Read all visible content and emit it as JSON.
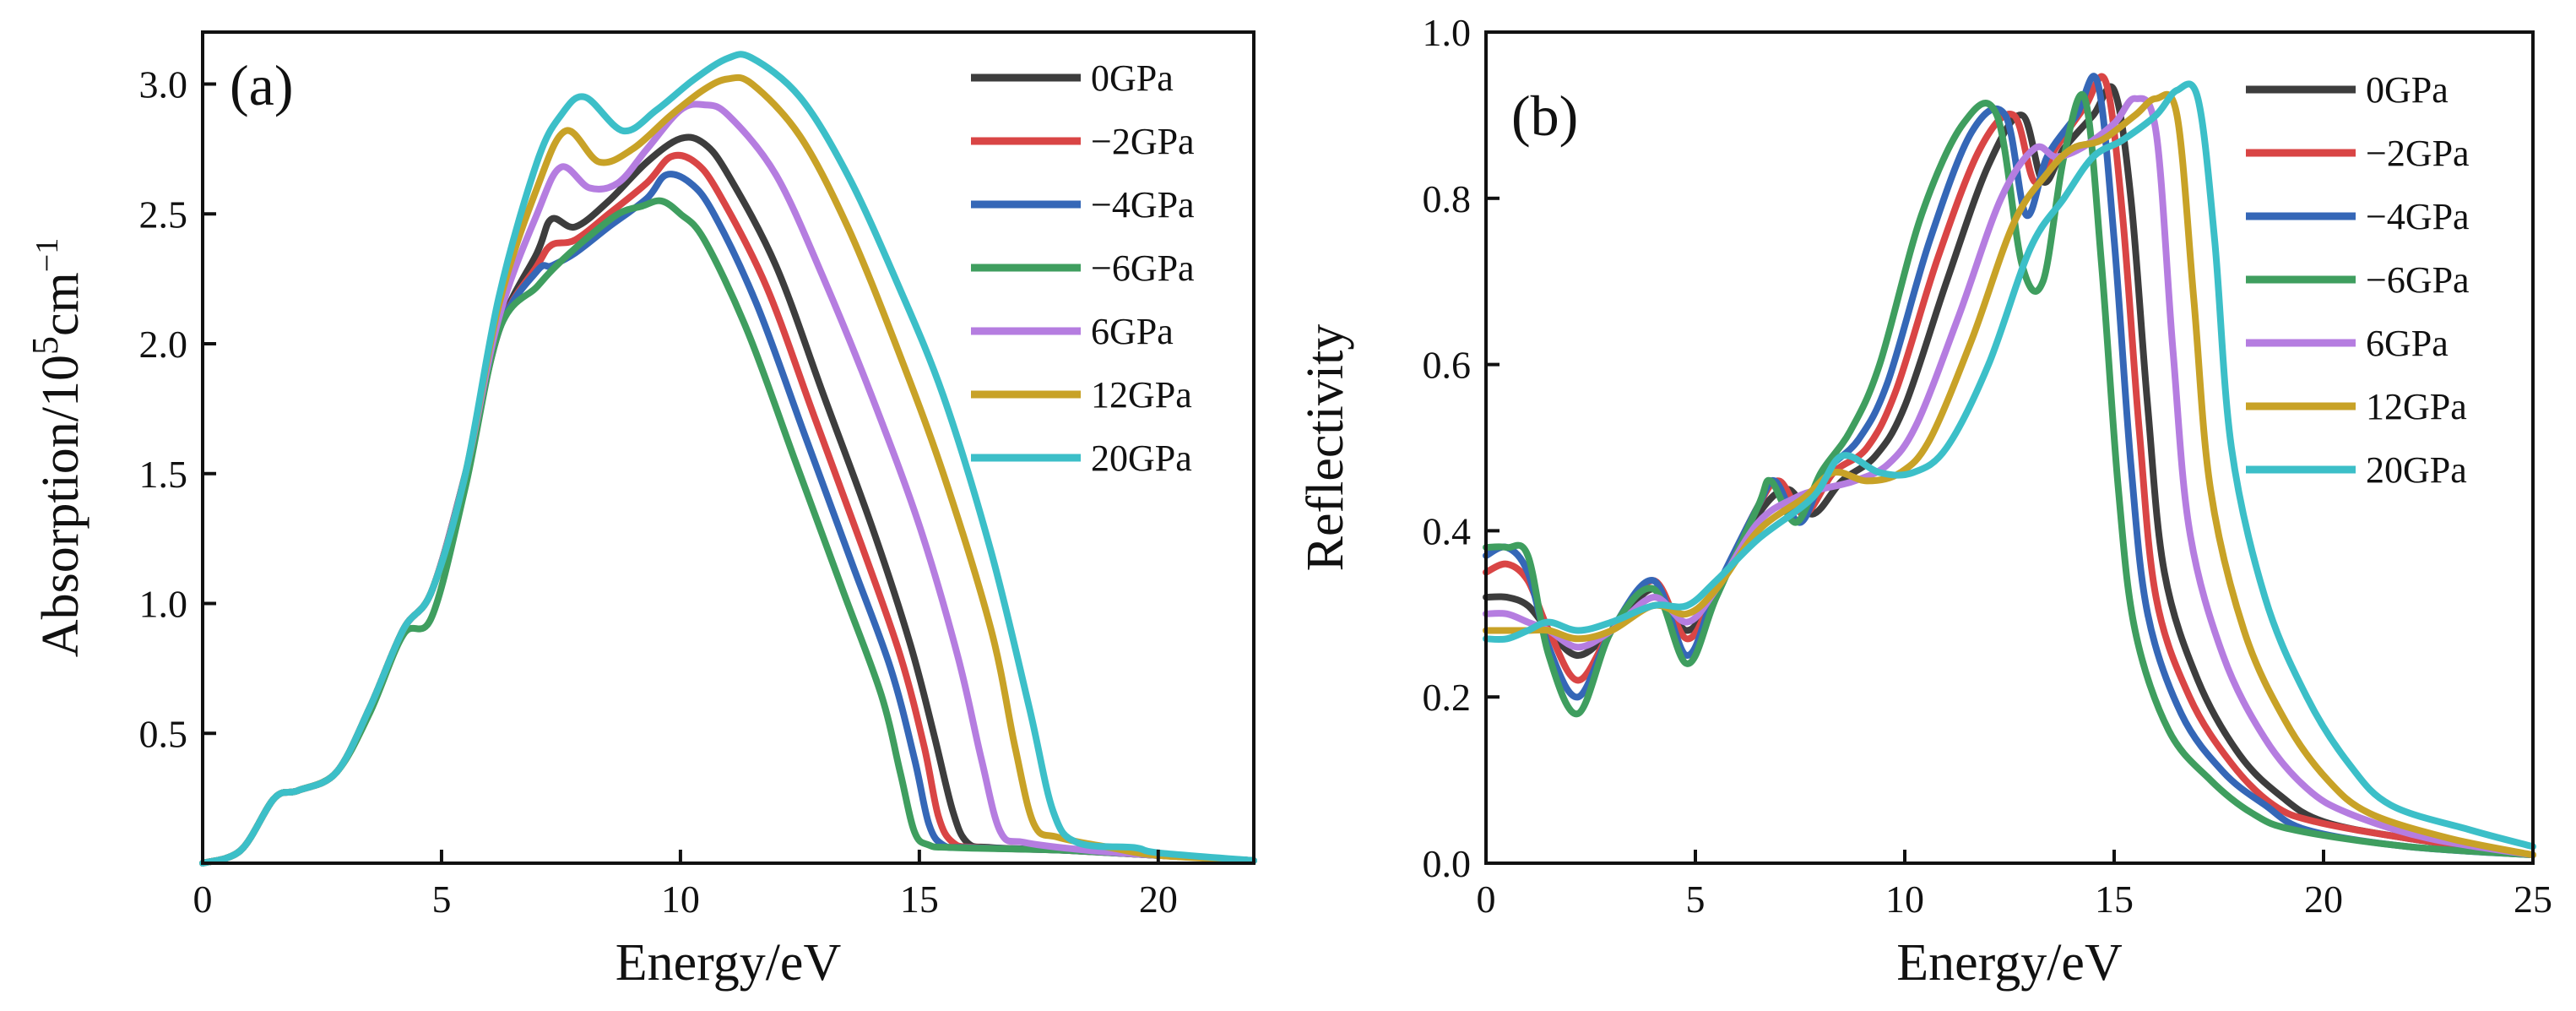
{
  "chart_data": [
    {
      "type": "line",
      "panel_label": "(a)",
      "xlabel": "Energy/eV",
      "ylabel_base": "Absorption/10",
      "ylabel_sup": "5",
      "ylabel_unit": "cm",
      "ylabel_unit_sup": "−1",
      "xlim": [
        0,
        22
      ],
      "ylim": [
        0,
        3.2
      ],
      "x_ticks": [
        0,
        5,
        10,
        15,
        20
      ],
      "y_ticks": [
        0.5,
        1.0,
        1.5,
        2.0,
        2.5,
        3.0
      ],
      "x_tick_labels": [
        "0",
        "5",
        "10",
        "15",
        "20"
      ],
      "y_tick_labels": [
        "0.5",
        "1.0",
        "1.5",
        "2.0",
        "2.5",
        "3.0"
      ],
      "grid": false,
      "legend_position": "top-right",
      "series": [
        {
          "name": "0GPa",
          "color": "#3d3d3d",
          "x": [
            0,
            0.8,
            1.5,
            2.0,
            2.8,
            3.5,
            4.2,
            4.8,
            5.5,
            6.2,
            7.0,
            7.3,
            7.8,
            8.5,
            9.3,
            10.0,
            10.5,
            11.0,
            12.0,
            13.0,
            14.0,
            14.8,
            15.3,
            15.7,
            16.0,
            16.5,
            18,
            20,
            22
          ],
          "y": [
            0,
            0.05,
            0.25,
            0.28,
            0.35,
            0.6,
            0.9,
            1.05,
            1.5,
            2.05,
            2.35,
            2.48,
            2.45,
            2.55,
            2.7,
            2.79,
            2.77,
            2.65,
            2.3,
            1.8,
            1.3,
            0.85,
            0.5,
            0.2,
            0.08,
            0.06,
            0.05,
            0.03,
            0.01
          ]
        },
        {
          "name": "−2GPa",
          "color": "#d94545",
          "x": [
            0,
            0.8,
            1.5,
            2.0,
            2.8,
            3.5,
            4.2,
            4.8,
            5.5,
            6.2,
            7.0,
            7.3,
            7.8,
            8.5,
            9.3,
            9.8,
            10.3,
            10.8,
            11.8,
            12.8,
            13.8,
            14.6,
            15.1,
            15.4,
            15.7,
            16.2,
            18,
            20,
            22
          ],
          "y": [
            0,
            0.05,
            0.25,
            0.28,
            0.35,
            0.6,
            0.9,
            1.05,
            1.5,
            2.05,
            2.3,
            2.38,
            2.4,
            2.5,
            2.62,
            2.72,
            2.7,
            2.58,
            2.22,
            1.72,
            1.22,
            0.8,
            0.45,
            0.18,
            0.08,
            0.06,
            0.05,
            0.03,
            0.01
          ]
        },
        {
          "name": "−4GPa",
          "color": "#3567b7",
          "x": [
            0,
            0.8,
            1.5,
            2.0,
            2.8,
            3.5,
            4.2,
            4.8,
            5.5,
            6.2,
            7.0,
            7.3,
            7.8,
            8.5,
            9.3,
            9.7,
            10.2,
            10.7,
            11.6,
            12.6,
            13.6,
            14.4,
            14.9,
            15.2,
            15.5,
            16.0,
            18,
            20,
            22
          ],
          "y": [
            0,
            0.05,
            0.25,
            0.28,
            0.35,
            0.6,
            0.9,
            1.05,
            1.5,
            2.05,
            2.28,
            2.3,
            2.35,
            2.45,
            2.56,
            2.65,
            2.62,
            2.5,
            2.15,
            1.65,
            1.15,
            0.75,
            0.4,
            0.15,
            0.07,
            0.06,
            0.05,
            0.03,
            0.01
          ]
        },
        {
          "name": "−6GPa",
          "color": "#3f9e5f",
          "x": [
            0,
            0.8,
            1.5,
            2.0,
            2.8,
            3.5,
            4.2,
            4.8,
            5.5,
            6.2,
            7.0,
            7.4,
            8.0,
            8.7,
            9.2,
            9.6,
            10.0,
            10.5,
            11.4,
            12.4,
            13.4,
            14.2,
            14.6,
            14.9,
            15.2,
            15.7,
            18,
            20,
            22
          ],
          "y": [
            0,
            0.05,
            0.25,
            0.28,
            0.35,
            0.58,
            0.88,
            0.95,
            1.45,
            2.05,
            2.22,
            2.3,
            2.4,
            2.5,
            2.53,
            2.55,
            2.5,
            2.4,
            2.05,
            1.55,
            1.05,
            0.65,
            0.35,
            0.12,
            0.07,
            0.06,
            0.05,
            0.03,
            0.01
          ]
        },
        {
          "name": "6GPa",
          "color": "#b57de0",
          "x": [
            0,
            0.8,
            1.5,
            2.0,
            2.8,
            3.5,
            4.2,
            4.8,
            5.5,
            6.2,
            7.0,
            7.5,
            8.1,
            8.7,
            9.3,
            10.0,
            10.5,
            11.0,
            12.0,
            13.0,
            14.0,
            15.0,
            15.8,
            16.3,
            16.7,
            17.2,
            18.5,
            20,
            22
          ],
          "y": [
            0,
            0.05,
            0.25,
            0.28,
            0.35,
            0.6,
            0.9,
            1.05,
            1.5,
            2.1,
            2.5,
            2.68,
            2.6,
            2.62,
            2.75,
            2.9,
            2.92,
            2.88,
            2.65,
            2.25,
            1.8,
            1.3,
            0.8,
            0.4,
            0.12,
            0.08,
            0.05,
            0.03,
            0.01
          ]
        },
        {
          "name": "12GPa",
          "color": "#c8a227",
          "x": [
            0,
            0.8,
            1.5,
            2.0,
            2.8,
            3.5,
            4.2,
            4.8,
            5.5,
            6.2,
            7.0,
            7.6,
            8.3,
            9.0,
            9.8,
            10.5,
            11.0,
            11.5,
            12.5,
            13.5,
            14.5,
            15.5,
            16.5,
            17.0,
            17.4,
            17.9,
            19,
            20,
            22
          ],
          "y": [
            0,
            0.05,
            0.25,
            0.28,
            0.35,
            0.6,
            0.9,
            1.05,
            1.5,
            2.15,
            2.6,
            2.82,
            2.7,
            2.75,
            2.88,
            2.98,
            3.02,
            3.0,
            2.8,
            2.45,
            2.0,
            1.5,
            0.9,
            0.45,
            0.15,
            0.1,
            0.06,
            0.03,
            0.01
          ]
        },
        {
          "name": "20GPa",
          "color": "#3cbfc8",
          "x": [
            0,
            0.8,
            1.5,
            2.0,
            2.8,
            3.5,
            4.2,
            4.8,
            5.5,
            6.2,
            7.0,
            7.5,
            8.0,
            8.8,
            9.5,
            10.3,
            11.0,
            11.5,
            12.5,
            13.5,
            14.5,
            15.5,
            16.5,
            17.3,
            17.8,
            18.3,
            19.5,
            20,
            22
          ],
          "y": [
            0,
            0.05,
            0.25,
            0.28,
            0.35,
            0.6,
            0.9,
            1.05,
            1.5,
            2.18,
            2.7,
            2.88,
            2.95,
            2.82,
            2.9,
            3.02,
            3.1,
            3.1,
            2.95,
            2.65,
            2.25,
            1.8,
            1.2,
            0.6,
            0.2,
            0.08,
            0.06,
            0.04,
            0.01
          ]
        }
      ]
    },
    {
      "type": "line",
      "panel_label": "(b)",
      "xlabel": "Energy/eV",
      "ylabel": "Reflectivity",
      "xlim": [
        0,
        25
      ],
      "ylim": [
        0,
        1.0
      ],
      "x_ticks": [
        0,
        5,
        10,
        15,
        20,
        25
      ],
      "y_ticks": [
        0.0,
        0.2,
        0.4,
        0.6,
        0.8,
        1.0
      ],
      "x_tick_labels": [
        "0",
        "5",
        "10",
        "15",
        "20",
        "25"
      ],
      "y_tick_labels": [
        "0.0",
        "0.2",
        "0.4",
        "0.6",
        "0.8",
        "1.0"
      ],
      "grid": false,
      "legend_position": "top-right",
      "series": [
        {
          "name": "0GPa",
          "color": "#3d3d3d",
          "x": [
            0,
            0.5,
            1.0,
            1.5,
            2.2,
            3.0,
            4.0,
            4.8,
            5.5,
            6.5,
            7.2,
            7.8,
            8.5,
            9.3,
            10.0,
            11.0,
            12.0,
            12.8,
            13.3,
            13.8,
            14.5,
            15.0,
            15.4,
            15.8,
            16.2,
            17,
            18,
            19,
            20,
            22,
            25
          ],
          "y": [
            0.32,
            0.32,
            0.31,
            0.28,
            0.25,
            0.28,
            0.33,
            0.28,
            0.33,
            0.42,
            0.45,
            0.42,
            0.46,
            0.49,
            0.55,
            0.7,
            0.84,
            0.9,
            0.82,
            0.86,
            0.9,
            0.93,
            0.8,
            0.55,
            0.35,
            0.22,
            0.13,
            0.08,
            0.05,
            0.03,
            0.01
          ]
        },
        {
          "name": "−2GPa",
          "color": "#d94545",
          "x": [
            0,
            0.5,
            1.0,
            1.5,
            2.2,
            3.0,
            4.0,
            4.8,
            5.5,
            6.5,
            7.0,
            7.6,
            8.3,
            9.1,
            9.8,
            10.8,
            11.8,
            12.6,
            13.1,
            13.6,
            14.3,
            14.8,
            15.2,
            15.6,
            16.0,
            16.8,
            17.8,
            18.8,
            19.8,
            22,
            25
          ],
          "y": [
            0.35,
            0.36,
            0.34,
            0.28,
            0.22,
            0.28,
            0.34,
            0.27,
            0.33,
            0.43,
            0.46,
            0.42,
            0.47,
            0.5,
            0.57,
            0.73,
            0.86,
            0.9,
            0.82,
            0.86,
            0.91,
            0.94,
            0.78,
            0.52,
            0.32,
            0.2,
            0.12,
            0.07,
            0.05,
            0.03,
            0.01
          ]
        },
        {
          "name": "−4GPa",
          "color": "#3567b7",
          "x": [
            0,
            0.5,
            1.0,
            1.5,
            2.2,
            3.0,
            4.0,
            4.8,
            5.5,
            6.5,
            6.9,
            7.5,
            8.1,
            8.9,
            9.6,
            10.6,
            11.6,
            12.4,
            12.9,
            13.4,
            14.1,
            14.6,
            15.0,
            15.4,
            15.8,
            16.6,
            17.6,
            18.6,
            19.6,
            22,
            25
          ],
          "y": [
            0.37,
            0.38,
            0.35,
            0.26,
            0.2,
            0.28,
            0.34,
            0.25,
            0.33,
            0.43,
            0.46,
            0.41,
            0.47,
            0.51,
            0.58,
            0.75,
            0.88,
            0.9,
            0.78,
            0.85,
            0.9,
            0.94,
            0.75,
            0.48,
            0.3,
            0.18,
            0.11,
            0.07,
            0.04,
            0.02,
            0.01
          ]
        },
        {
          "name": "−6GPa",
          "color": "#3f9e5f",
          "x": [
            0,
            0.5,
            1.0,
            1.5,
            2.2,
            3.0,
            4.0,
            4.8,
            5.5,
            6.5,
            6.8,
            7.4,
            8.0,
            8.7,
            9.4,
            10.4,
            11.4,
            12.2,
            12.8,
            13.3,
            13.8,
            14.3,
            14.7,
            15.1,
            15.5,
            16.3,
            17.3,
            18.3,
            19.3,
            22,
            25
          ],
          "y": [
            0.38,
            0.38,
            0.37,
            0.25,
            0.18,
            0.28,
            0.33,
            0.24,
            0.32,
            0.43,
            0.46,
            0.41,
            0.47,
            0.52,
            0.6,
            0.78,
            0.89,
            0.9,
            0.72,
            0.7,
            0.85,
            0.92,
            0.72,
            0.45,
            0.28,
            0.16,
            0.1,
            0.06,
            0.04,
            0.02,
            0.01
          ]
        },
        {
          "name": "6GPa",
          "color": "#b57de0",
          "x": [
            0,
            0.5,
            1.0,
            1.5,
            2.2,
            3.0,
            4.0,
            4.8,
            5.5,
            6.5,
            7.4,
            8.0,
            8.8,
            9.6,
            10.3,
            11.3,
            12.3,
            13.1,
            13.6,
            14.2,
            15.0,
            15.5,
            16.0,
            16.4,
            16.8,
            17.6,
            18.6,
            19.6,
            20.6,
            22.5,
            25
          ],
          "y": [
            0.3,
            0.3,
            0.29,
            0.28,
            0.26,
            0.28,
            0.32,
            0.29,
            0.33,
            0.41,
            0.44,
            0.45,
            0.46,
            0.48,
            0.53,
            0.66,
            0.8,
            0.86,
            0.85,
            0.86,
            0.89,
            0.92,
            0.88,
            0.62,
            0.4,
            0.25,
            0.15,
            0.09,
            0.06,
            0.03,
            0.01
          ]
        },
        {
          "name": "12GPa",
          "color": "#c8a227",
          "x": [
            0,
            0.5,
            1.0,
            1.5,
            2.2,
            3.0,
            4.0,
            4.8,
            5.5,
            6.5,
            7.6,
            8.3,
            9.1,
            9.9,
            10.6,
            11.6,
            12.6,
            13.4,
            14.0,
            14.7,
            15.5,
            16.0,
            16.5,
            16.9,
            17.3,
            18.1,
            19.1,
            20.1,
            21.1,
            23,
            25
          ],
          "y": [
            0.28,
            0.28,
            0.28,
            0.28,
            0.27,
            0.28,
            0.31,
            0.3,
            0.33,
            0.4,
            0.44,
            0.47,
            0.46,
            0.47,
            0.51,
            0.63,
            0.77,
            0.83,
            0.86,
            0.87,
            0.9,
            0.92,
            0.9,
            0.68,
            0.45,
            0.28,
            0.17,
            0.1,
            0.06,
            0.03,
            0.01
          ]
        },
        {
          "name": "20GPa",
          "color": "#3cbfc8",
          "x": [
            0,
            0.5,
            1.0,
            1.5,
            2.2,
            3.0,
            4.0,
            4.8,
            5.5,
            6.5,
            7.8,
            8.5,
            9.4,
            10.2,
            11.0,
            12.0,
            13.0,
            13.8,
            14.5,
            15.2,
            16.0,
            16.5,
            17.0,
            17.4,
            17.8,
            18.6,
            19.6,
            20.6,
            21.6,
            23.5,
            25
          ],
          "y": [
            0.27,
            0.27,
            0.28,
            0.29,
            0.28,
            0.29,
            0.31,
            0.31,
            0.34,
            0.39,
            0.44,
            0.49,
            0.47,
            0.47,
            0.5,
            0.6,
            0.74,
            0.8,
            0.85,
            0.87,
            0.9,
            0.93,
            0.92,
            0.75,
            0.5,
            0.32,
            0.2,
            0.12,
            0.07,
            0.04,
            0.02
          ]
        }
      ]
    }
  ]
}
